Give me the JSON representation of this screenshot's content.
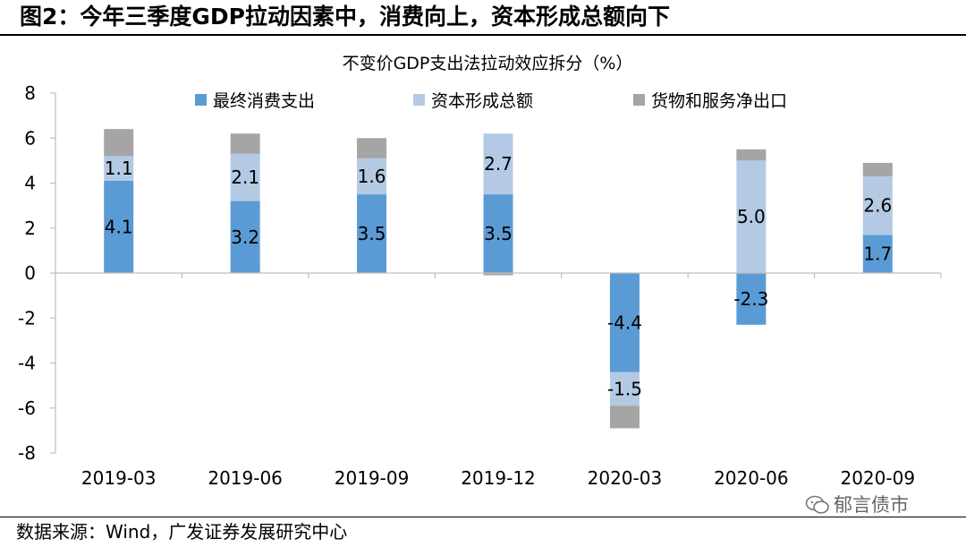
{
  "figure": {
    "title": "图2：今年三季度GDP拉动因素中，消费向上，资本形成总额向下",
    "source": "数据来源：Wind，广发证券发展研究中心",
    "watermark": "郁言债市"
  },
  "chart_data": {
    "type": "bar",
    "stacked": true,
    "title": "不变价GDP支出法拉动效应拆分（%）",
    "xlabel": "",
    "ylabel": "",
    "ylim": [
      -8,
      8
    ],
    "yticks": [
      8,
      6,
      4,
      2,
      0,
      -2,
      -4,
      -6,
      -8
    ],
    "categories": [
      "2019-03",
      "2019-06",
      "2019-09",
      "2019-12",
      "2020-03",
      "2020-06",
      "2020-09"
    ],
    "series": [
      {
        "name": "最终消费支出",
        "color": "#5b9bd5",
        "values": [
          4.1,
          3.2,
          3.5,
          3.5,
          -4.4,
          -2.3,
          1.7
        ],
        "labels": [
          "4.1",
          "3.2",
          "3.5",
          "3.5",
          "-4.4",
          "-2.3",
          "1.7"
        ]
      },
      {
        "name": "资本形成总额",
        "color": "#b4c9e3",
        "values": [
          1.1,
          2.1,
          1.6,
          2.7,
          -1.5,
          5.0,
          2.6
        ],
        "labels": [
          "1.1",
          "2.1",
          "1.6",
          "2.7",
          "-1.5",
          "5.0",
          "2.6"
        ]
      },
      {
        "name": "货物和服务净出口",
        "color": "#a5a5a5",
        "values": [
          1.2,
          0.9,
          0.9,
          -0.1,
          -1.0,
          0.5,
          0.6
        ],
        "labels": null
      }
    ],
    "legend_position": "top"
  }
}
